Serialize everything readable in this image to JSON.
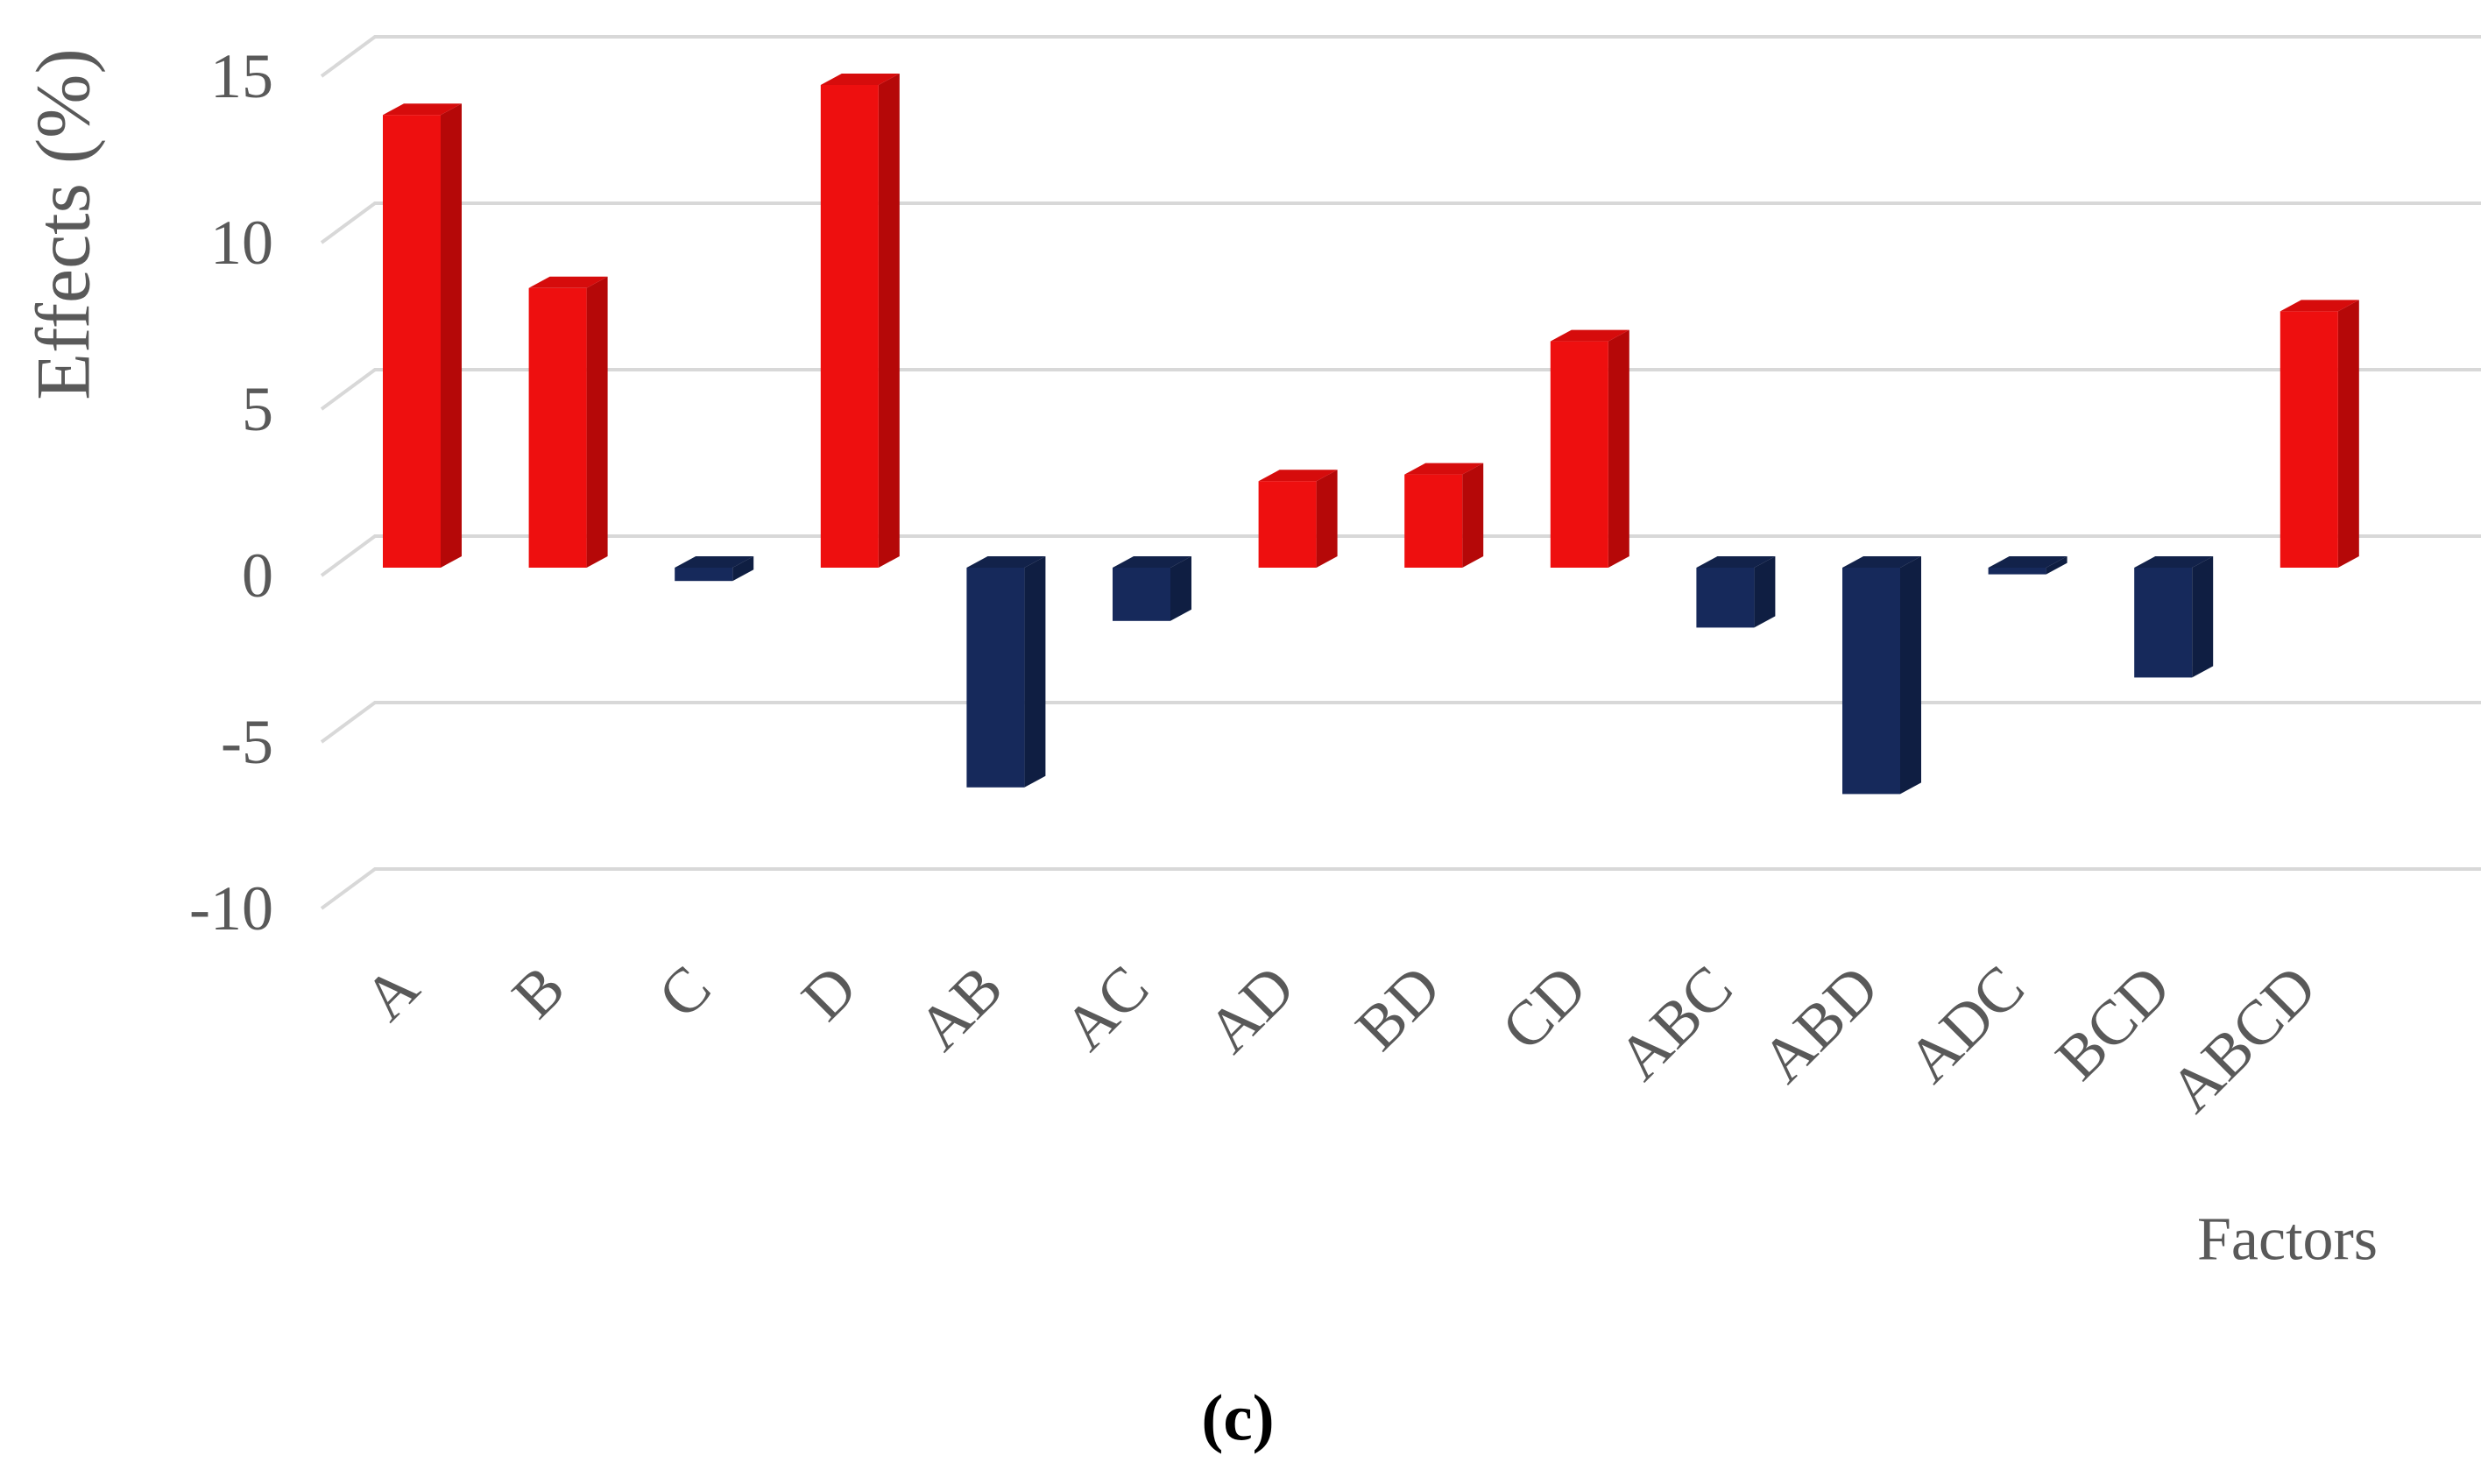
{
  "caption": "(c)",
  "chart_data": {
    "type": "bar",
    "style": "3d-effect-pareto",
    "title": "",
    "xlabel": "Factors",
    "ylabel": "Effects (%)",
    "categories": [
      "A",
      "B",
      "C",
      "D",
      "AB",
      "AC",
      "AD",
      "BD",
      "CD",
      "ABC",
      "ABD",
      "ADC",
      "BCD",
      "ABCD"
    ],
    "values": [
      13.6,
      8.4,
      -0.4,
      14.5,
      -6.6,
      -1.6,
      2.6,
      2.8,
      6.8,
      -1.8,
      -6.8,
      -0.2,
      -3.3,
      7.7
    ],
    "y_ticks": [
      15,
      10,
      5,
      0,
      -5,
      -10
    ],
    "y_tick_labels": [
      "15",
      "10",
      "5",
      "0",
      "-5",
      "-10"
    ],
    "ylim": [
      -10,
      15
    ],
    "grid": true,
    "legend": "none",
    "colors": {
      "positive_front": "#EE0F0F",
      "positive_top": "#D60C0C",
      "positive_side": "#B50808",
      "negative_front": "#16295B",
      "negative_top": "#12224A",
      "negative_side": "#0F1E42",
      "gridline": "#D8D8D8",
      "axis_text": "#595959",
      "caption_text": "#000000"
    }
  }
}
